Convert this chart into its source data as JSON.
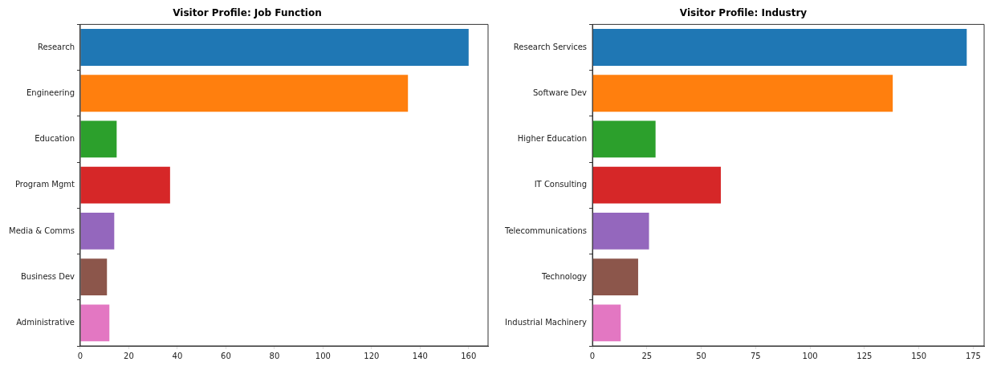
{
  "chart_data": [
    {
      "type": "bar",
      "orientation": "horizontal",
      "title": "Visitor Profile: Job Function",
      "categories": [
        "Research",
        "Engineering",
        "Education",
        "Program Mgmt",
        "Media & Comms",
        "Business Dev",
        "Administrative"
      ],
      "values": [
        160,
        135,
        15,
        37,
        14,
        11,
        12
      ],
      "colors": [
        "#1f77b4",
        "#ff7f0e",
        "#2ca02c",
        "#d62728",
        "#9467bd",
        "#8c564b",
        "#e377c2"
      ],
      "xlim": [
        0,
        168
      ],
      "xticks": [
        0,
        20,
        40,
        60,
        80,
        100,
        120,
        140,
        160
      ],
      "grid": false,
      "legend": false
    },
    {
      "type": "bar",
      "orientation": "horizontal",
      "title": "Visitor Profile: Industry",
      "categories": [
        "Research Services",
        "Software Dev",
        "Higher Education",
        "IT Consulting",
        "Telecommunications",
        "Technology",
        "Industrial Machinery"
      ],
      "values": [
        172,
        138,
        29,
        59,
        26,
        21,
        13
      ],
      "colors": [
        "#1f77b4",
        "#ff7f0e",
        "#2ca02c",
        "#d62728",
        "#9467bd",
        "#8c564b",
        "#e377c2"
      ],
      "xlim": [
        0,
        180
      ],
      "xticks": [
        0,
        25,
        50,
        75,
        100,
        125,
        150,
        175
      ],
      "grid": false,
      "legend": false
    }
  ]
}
